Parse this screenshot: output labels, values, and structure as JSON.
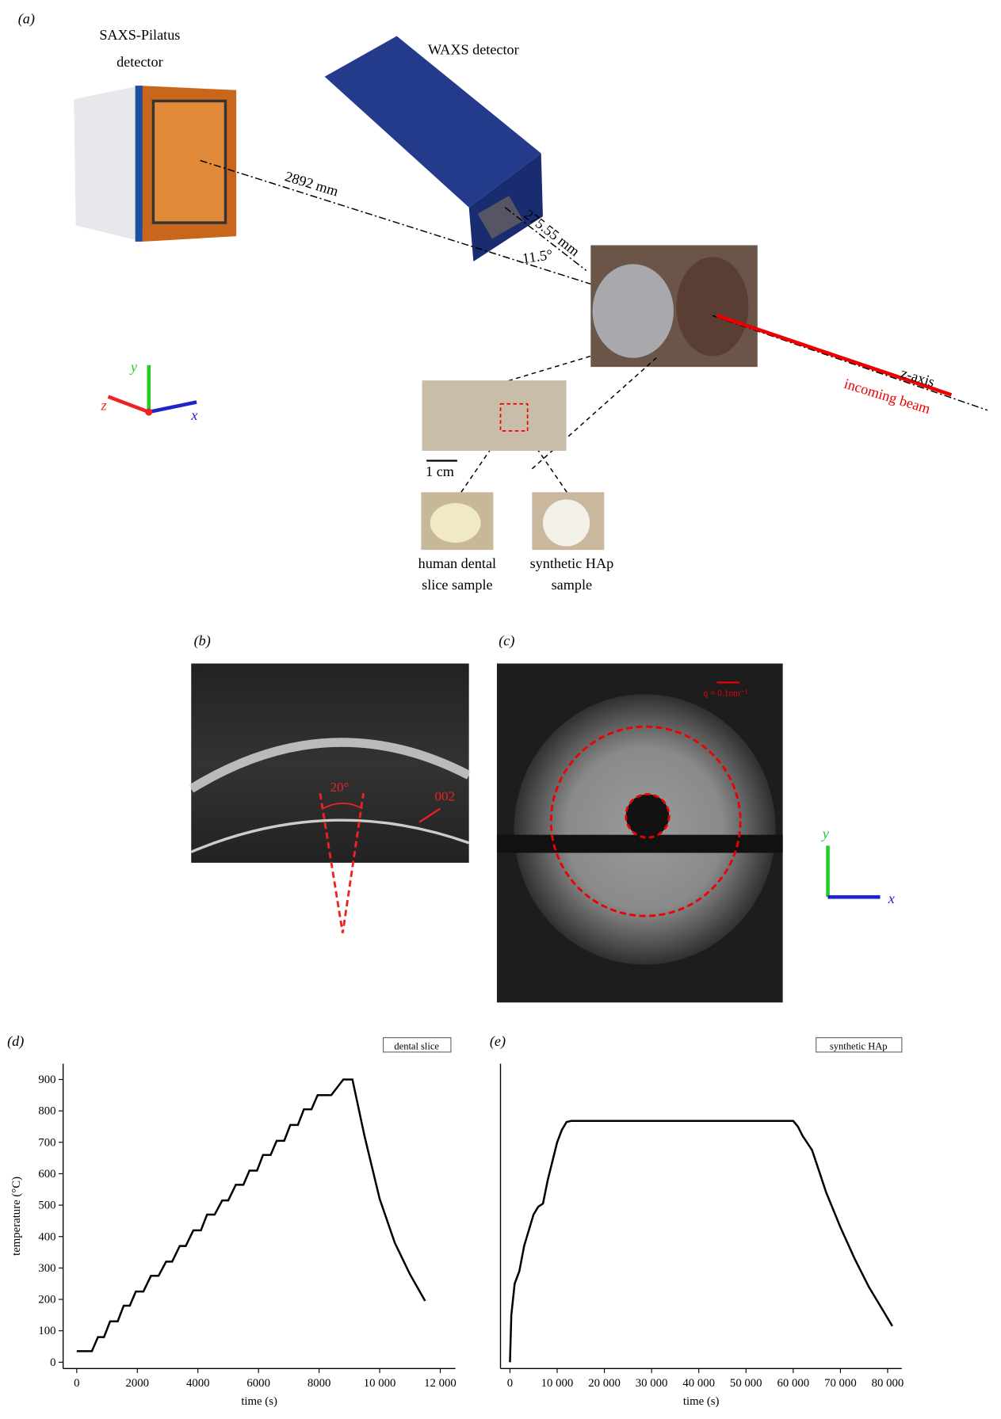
{
  "figure": {
    "panel_a": "(a)",
    "saxs_label": [
      "SAXS-Pilatus",
      "detector"
    ],
    "waxs_label": "WAXS detector",
    "dist_saxs": "2892 mm",
    "dist_waxs": "275.55 mm",
    "angle": "11.5°",
    "zaxis": "z-axis",
    "beam": "incoming beam",
    "axis_y": "y",
    "axis_z": "z",
    "axis_x": "x",
    "scale": "1 cm",
    "sample1": [
      "human dental",
      "slice sample"
    ],
    "sample2": [
      "synthetic HAp",
      "sample"
    ],
    "panel_b": "(b)",
    "angle_b": "20°",
    "peak": "002",
    "panel_c": "(c)",
    "q_scale": "q = 0.1nm⁻¹",
    "axis_c_y": "y",
    "axis_c_x": "x"
  },
  "chart_data": [
    {
      "type": "line",
      "title": "(d)",
      "xlabel": "time (s)",
      "ylabel": "temperature (°C)",
      "x": [
        0,
        500,
        700,
        900,
        1100,
        1350,
        1550,
        1750,
        1950,
        2200,
        2450,
        2700,
        2950,
        3150,
        3400,
        3600,
        3850,
        4100,
        4300,
        4550,
        4800,
        5000,
        5250,
        5500,
        5700,
        5950,
        6150,
        6400,
        6600,
        6850,
        7050,
        7300,
        7500,
        7750,
        7950,
        8400,
        8800,
        9100,
        9500,
        10000,
        10500,
        11000,
        11500
      ],
      "series": [
        {
          "name": "dental slice",
          "color": "#000000",
          "values": [
            35,
            35,
            80,
            80,
            130,
            130,
            180,
            180,
            225,
            225,
            275,
            275,
            320,
            320,
            370,
            370,
            420,
            420,
            470,
            470,
            515,
            515,
            565,
            565,
            610,
            610,
            660,
            660,
            705,
            705,
            755,
            755,
            805,
            805,
            850,
            850,
            900,
            900,
            720,
            520,
            380,
            280,
            195
          ]
        }
      ],
      "xlim": [
        -450,
        12500
      ],
      "ylim": [
        -20,
        950
      ],
      "xticks": [
        0,
        2000,
        4000,
        6000,
        8000,
        {
          "value": 10000,
          "label": "10 000"
        },
        {
          "value": 12000,
          "label": "12 000"
        }
      ],
      "yticks": [
        0,
        100,
        200,
        300,
        400,
        500,
        600,
        700,
        800,
        900
      ]
    },
    {
      "type": "line",
      "title": "(e)",
      "xlabel": "time (s)",
      "x": [
        0,
        300,
        1000,
        2000,
        3000,
        4000,
        5000,
        6000,
        7000,
        8000,
        9000,
        10000,
        11000,
        12000,
        13000,
        60000,
        61000,
        62000,
        64000,
        65000,
        67000,
        70000,
        73000,
        76000,
        79000,
        81000
      ],
      "series": [
        {
          "name": "synthetic HAp",
          "color": "#000000",
          "values": [
            0,
            150,
            250,
            290,
            370,
            420,
            470,
            495,
            505,
            580,
            640,
            700,
            740,
            765,
            768,
            768,
            750,
            720,
            675,
            630,
            540,
            430,
            330,
            240,
            165,
            115
          ]
        }
      ],
      "xlim": [
        -2000,
        83000
      ],
      "ylim": [
        -20,
        950
      ],
      "xticks": [
        0,
        {
          "value": 10000,
          "label": "10 000"
        },
        {
          "value": 20000,
          "label": "20 000"
        },
        {
          "value": 30000,
          "label": "30 000"
        },
        {
          "value": 40000,
          "label": "40 000"
        },
        {
          "value": 50000,
          "label": "50 000"
        },
        {
          "value": 60000,
          "label": "60 000"
        },
        {
          "value": 70000,
          "label": "70 000"
        },
        {
          "value": 80000,
          "label": "80 000"
        }
      ]
    }
  ]
}
